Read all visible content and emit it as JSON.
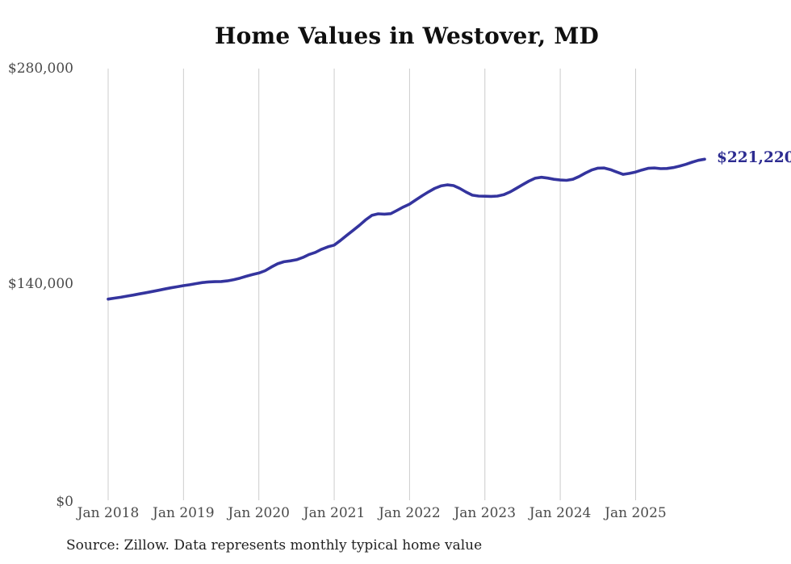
{
  "chart_data": {
    "type": "line",
    "title": "Home Values in Westover, MD",
    "frequency": "monthly",
    "x_start": "Jan 2018",
    "x_end": "Dec 2025",
    "x_tick_labels": [
      "Jan 2018",
      "Jan 2019",
      "Jan 2020",
      "Jan 2021",
      "Jan 2022",
      "Jan 2023",
      "Jan 2024",
      "Jan 2025"
    ],
    "y_tick_labels": [
      "$280,000",
      "$140,000",
      "$0"
    ],
    "ylim": [
      0,
      280000
    ],
    "grid": "vertical-only",
    "legend": "none",
    "end_label": "$221,220",
    "series": [
      {
        "name": "Typical home value",
        "color": "#34349e",
        "values": [
          130500,
          131100,
          131700,
          132400,
          133100,
          133900,
          134600,
          135400,
          136200,
          137000,
          137800,
          138500,
          139200,
          139800,
          140500,
          141200,
          141600,
          141800,
          141900,
          142300,
          143100,
          144100,
          145300,
          146400,
          147400,
          148900,
          151300,
          153400,
          154700,
          155300,
          156000,
          157500,
          159400,
          160800,
          162800,
          164400,
          165500,
          168500,
          171800,
          175000,
          178300,
          181800,
          184800,
          185800,
          185600,
          185900,
          188000,
          190200,
          192100,
          194800,
          197500,
          200000,
          202300,
          203900,
          204600,
          204100,
          202300,
          199900,
          197900,
          197300,
          197200,
          197100,
          197300,
          198200,
          200000,
          202300,
          204700,
          207000,
          208900,
          209500,
          209000,
          208200,
          207700,
          207500,
          208200,
          210000,
          212200,
          214200,
          215400,
          215500,
          214500,
          212900,
          211400,
          212000,
          212900,
          214200,
          215300,
          215500,
          215100,
          215200,
          215800,
          216700,
          217900,
          219300,
          220500,
          221220
        ]
      }
    ]
  },
  "colors": {
    "line": "#34349e",
    "end_label": "#2d2c91",
    "grid": "#cccccc",
    "tick_text": "#4a4a4a",
    "title_text": "#0f0f0f",
    "source_text": "#1f1f1f",
    "background": "#ffffff"
  },
  "footer": {
    "source_note": "Source: Zillow. Data represents monthly typical home value"
  }
}
